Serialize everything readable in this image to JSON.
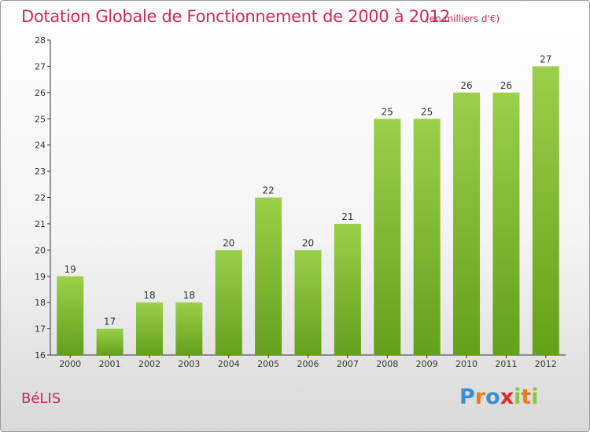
{
  "chart_data": {
    "type": "bar",
    "title": "Dotation Globale de Fonctionnement de 2000 à 2012",
    "subtitle": "(en milliers d'€)",
    "categories": [
      "2000",
      "2001",
      "2002",
      "2003",
      "2004",
      "2005",
      "2006",
      "2007",
      "2008",
      "2009",
      "2010",
      "2011",
      "2012"
    ],
    "values": [
      19,
      17,
      18,
      18,
      20,
      22,
      20,
      21,
      25,
      25,
      26,
      26,
      27
    ],
    "ylim": [
      16,
      28
    ],
    "yticks": [
      16,
      17,
      18,
      19,
      20,
      21,
      22,
      23,
      24,
      25,
      26,
      27,
      28
    ],
    "grid": false,
    "bar_color": "#7cb82f"
  },
  "footer": {
    "commune": "BéLIS",
    "logo_letters": [
      "P",
      "r",
      "o",
      "x",
      "i",
      "t",
      "i"
    ],
    "logo_colors": [
      "#3a8fd1",
      "#e87d1e",
      "#3a8fd1",
      "#e02a2a",
      "#8cc63f",
      "#e87d1e",
      "#8cc63f"
    ]
  }
}
